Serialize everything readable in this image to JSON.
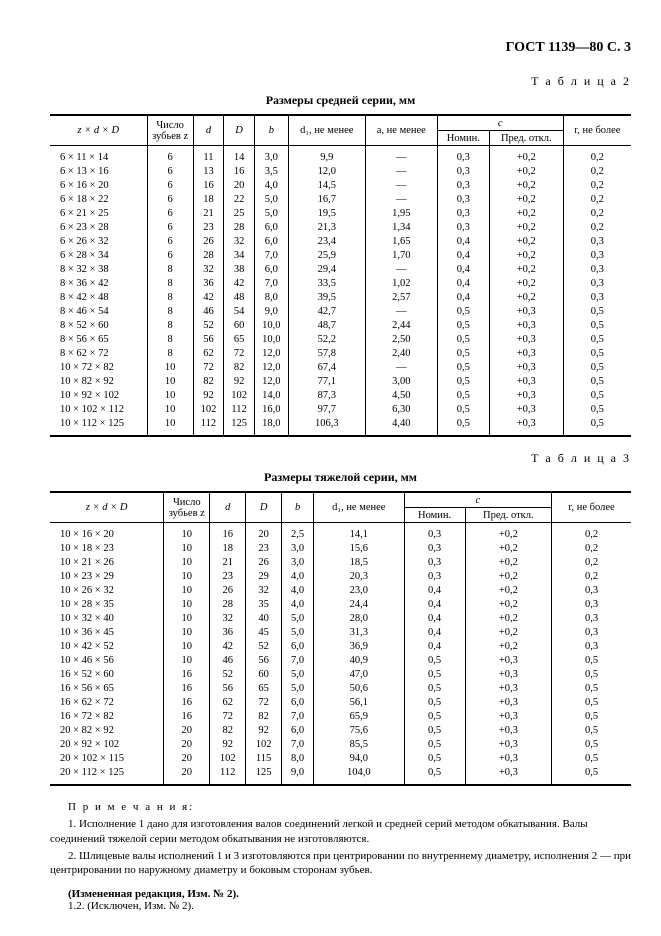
{
  "header": "ГОСТ 1139—80 С. 3",
  "table2": {
    "label": "Т а б л и ц а  2",
    "title": "Размеры средней серии, мм",
    "cols": {
      "zdD": "z × d × D",
      "teeth": "Число зубьев z",
      "d": "d",
      "D": "D",
      "b": "b",
      "d1": "d₁, не менее",
      "a": "a, не менее",
      "c": "c",
      "c_nom": "Номин.",
      "c_dev": "Пред. откл.",
      "r": "r, не более"
    },
    "rows": [
      [
        "6 × 11 × 14",
        "6",
        "11",
        "14",
        "3,0",
        "9,9",
        "—",
        "0,3",
        "+0,2",
        "0,2"
      ],
      [
        "6 × 13 × 16",
        "6",
        "13",
        "16",
        "3,5",
        "12,0",
        "—",
        "0,3",
        "+0,2",
        "0,2"
      ],
      [
        "6 × 16 × 20",
        "6",
        "16",
        "20",
        "4,0",
        "14,5",
        "—",
        "0,3",
        "+0,2",
        "0,2"
      ],
      [
        "6 × 18 × 22",
        "6",
        "18",
        "22",
        "5,0",
        "16,7",
        "—",
        "0,3",
        "+0,2",
        "0,2"
      ],
      [
        "6 × 21 × 25",
        "6",
        "21",
        "25",
        "5,0",
        "19,5",
        "1,95",
        "0,3",
        "+0,2",
        "0,2"
      ],
      [
        "6 × 23 × 28",
        "6",
        "23",
        "28",
        "6,0",
        "21,3",
        "1,34",
        "0,3",
        "+0,2",
        "0,2"
      ],
      [
        "6 × 26 × 32",
        "6",
        "26",
        "32",
        "6,0",
        "23,4",
        "1,65",
        "0,4",
        "+0,2",
        "0,3"
      ],
      [
        "6 × 28 × 34",
        "6",
        "28",
        "34",
        "7,0",
        "25,9",
        "1,70",
        "0,4",
        "+0,2",
        "0,3"
      ],
      [
        "8 × 32 × 38",
        "8",
        "32",
        "38",
        "6,0",
        "29,4",
        "—",
        "0,4",
        "+0,2",
        "0,3"
      ],
      [
        "8 × 36 × 42",
        "8",
        "36",
        "42",
        "7,0",
        "33,5",
        "1,02",
        "0,4",
        "+0,2",
        "0,3"
      ],
      [
        "8 × 42 × 48",
        "8",
        "42",
        "48",
        "8,0",
        "39,5",
        "2,57",
        "0,4",
        "+0,2",
        "0,3"
      ],
      [
        "8 × 46 × 54",
        "8",
        "46",
        "54",
        "9,0",
        "42,7",
        "—",
        "0,5",
        "+0,3",
        "0,5"
      ],
      [
        "8 × 52 × 60",
        "8",
        "52",
        "60",
        "10,0",
        "48,7",
        "2,44",
        "0,5",
        "+0,3",
        "0,5"
      ],
      [
        "8 × 56 × 65",
        "8",
        "56",
        "65",
        "10,0",
        "52,2",
        "2,50",
        "0,5",
        "+0,3",
        "0,5"
      ],
      [
        "8 × 62 × 72",
        "8",
        "62",
        "72",
        "12,0",
        "57,8",
        "2,40",
        "0,5",
        "+0,3",
        "0,5"
      ],
      [
        "10 × 72 × 82",
        "10",
        "72",
        "82",
        "12,0",
        "67,4",
        "—",
        "0,5",
        "+0,3",
        "0,5"
      ],
      [
        "10 × 82 × 92",
        "10",
        "82",
        "92",
        "12,0",
        "77,1",
        "3,00",
        "0,5",
        "+0,3",
        "0,5"
      ],
      [
        "10 × 92 × 102",
        "10",
        "92",
        "102",
        "14,0",
        "87,3",
        "4,50",
        "0,5",
        "+0,3",
        "0,5"
      ],
      [
        "10 × 102 × 112",
        "10",
        "102",
        "112",
        "16,0",
        "97,7",
        "6,30",
        "0,5",
        "+0,3",
        "0,5"
      ],
      [
        "10 × 112 × 125",
        "10",
        "112",
        "125",
        "18,0",
        "106,3",
        "4,40",
        "0,5",
        "+0,3",
        "0,5"
      ]
    ]
  },
  "table3": {
    "label": "Т а б л и ц а  3",
    "title": "Размеры тяжелой серии, мм",
    "cols": {
      "zdD": "z × d × D",
      "teeth": "Число зубьев z",
      "d": "d",
      "D": "D",
      "b": "b",
      "d1": "d₁, не менее",
      "c": "c",
      "c_nom": "Номин.",
      "c_dev": "Пред. откл.",
      "r": "r, не более"
    },
    "rows": [
      [
        "10 × 16 × 20",
        "10",
        "16",
        "20",
        "2,5",
        "14,1",
        "0,3",
        "+0,2",
        "0,2"
      ],
      [
        "10 × 18 × 23",
        "10",
        "18",
        "23",
        "3,0",
        "15,6",
        "0,3",
        "+0,2",
        "0,2"
      ],
      [
        "10 × 21 × 26",
        "10",
        "21",
        "26",
        "3,0",
        "18,5",
        "0,3",
        "+0,2",
        "0,2"
      ],
      [
        "10 × 23 × 29",
        "10",
        "23",
        "29",
        "4,0",
        "20,3",
        "0,3",
        "+0,2",
        "0,2"
      ],
      [
        "10 × 26 × 32",
        "10",
        "26",
        "32",
        "4,0",
        "23,0",
        "0,4",
        "+0,2",
        "0,3"
      ],
      [
        "10 × 28 × 35",
        "10",
        "28",
        "35",
        "4,0",
        "24,4",
        "0,4",
        "+0,2",
        "0,3"
      ],
      [
        "10 × 32 × 40",
        "10",
        "32",
        "40",
        "5,0",
        "28,0",
        "0,4",
        "+0,2",
        "0,3"
      ],
      [
        "10 × 36 × 45",
        "10",
        "36",
        "45",
        "5,0",
        "31,3",
        "0,4",
        "+0,2",
        "0,3"
      ],
      [
        "10 × 42 × 52",
        "10",
        "42",
        "52",
        "6,0",
        "36,9",
        "0,4",
        "+0,2",
        "0,3"
      ],
      [
        "10 × 46 × 56",
        "10",
        "46",
        "56",
        "7,0",
        "40,9",
        "0,5",
        "+0,3",
        "0,5"
      ],
      [
        "16 × 52 × 60",
        "16",
        "52",
        "60",
        "5,0",
        "47,0",
        "0,5",
        "+0,3",
        "0,5"
      ],
      [
        "16 × 56 × 65",
        "16",
        "56",
        "65",
        "5,0",
        "50,6",
        "0,5",
        "+0,3",
        "0,5"
      ],
      [
        "16 × 62 × 72",
        "16",
        "62",
        "72",
        "6,0",
        "56,1",
        "0,5",
        "+0,3",
        "0,5"
      ],
      [
        "16 × 72 × 82",
        "16",
        "72",
        "82",
        "7,0",
        "65,9",
        "0,5",
        "+0,3",
        "0,5"
      ],
      [
        "20 × 82 × 92",
        "20",
        "82",
        "92",
        "6,0",
        "75,6",
        "0,5",
        "+0,3",
        "0,5"
      ],
      [
        "20 × 92 × 102",
        "20",
        "92",
        "102",
        "7,0",
        "85,5",
        "0,5",
        "+0,3",
        "0,5"
      ],
      [
        "20 × 102 × 115",
        "20",
        "102",
        "115",
        "8,0",
        "94,0",
        "0,5",
        "+0,3",
        "0,5"
      ],
      [
        "20 × 112 × 125",
        "20",
        "112",
        "125",
        "9,0",
        "104,0",
        "0,5",
        "+0,3",
        "0,5"
      ]
    ]
  },
  "notes": {
    "header": "П р и м е ч а н и я:",
    "n1": "1. Исполнение 1 дано для изготовления валов соединений легкой и средней серий методом обкатывания. Валы соединений тяжелой серии методом обкатывания не изготовляются.",
    "n2": "2. Шлицевые валы исполнений 1 и 3 изготовляются при центрировании по внутреннему диаметру, исполнения 2 — при центрировании по наружному диаметру и боковым сторонам зубьев."
  },
  "amend": {
    "a1": "(Измененная редакция, Изм. № 2).",
    "a2": "1.2. (Исключен, Изм. № 2)."
  }
}
